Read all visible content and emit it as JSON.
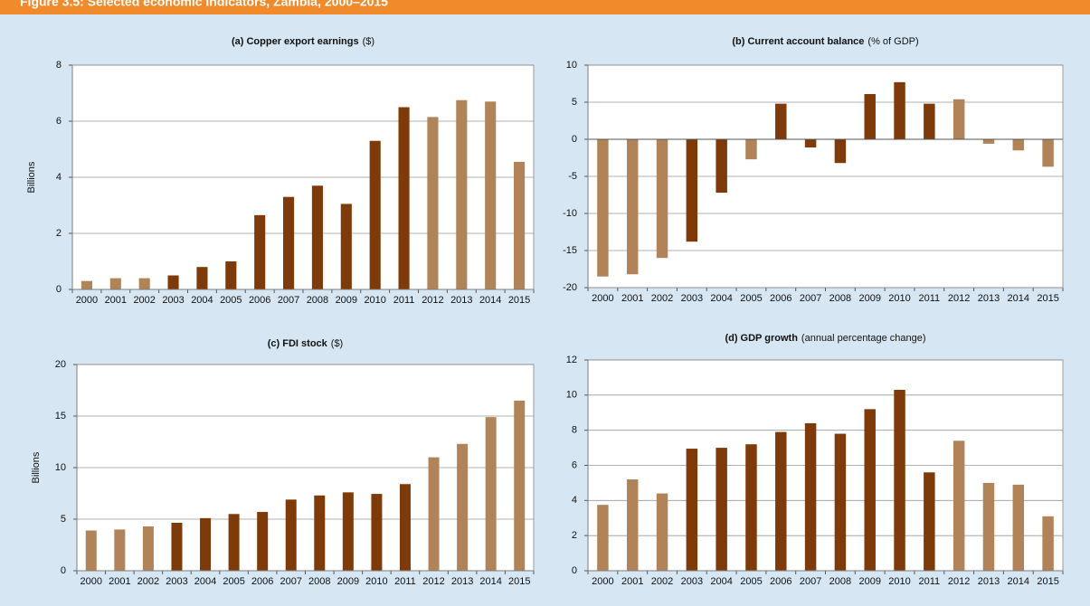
{
  "header": {
    "title": "Figure 3.5: Selected economic indicators, Zambia, 2000–2015"
  },
  "chart_data": [
    {
      "type": "bar",
      "title": "(a) Copper export earnings",
      "title_note": "($)",
      "ylabel": "Billions",
      "categories": [
        "2000",
        "2001",
        "2002",
        "2003",
        "2004",
        "2005",
        "2006",
        "2007",
        "2008",
        "2009",
        "2010",
        "2011",
        "2012",
        "2013",
        "2014",
        "2015"
      ],
      "values": [
        0.3,
        0.4,
        0.4,
        0.5,
        0.8,
        1.0,
        2.65,
        3.3,
        3.7,
        3.05,
        5.3,
        6.5,
        6.15,
        6.75,
        6.7,
        4.55
      ],
      "colors": [
        "#b08458",
        "#b08458",
        "#b08458",
        "#7f3a0a",
        "#7f3a0a",
        "#7f3a0a",
        "#7f3a0a",
        "#7f3a0a",
        "#7f3a0a",
        "#7f3a0a",
        "#7f3a0a",
        "#7f3a0a",
        "#b08458",
        "#b08458",
        "#b08458",
        "#b08458"
      ],
      "ylim": [
        0,
        8
      ],
      "yticks": [
        0,
        2,
        4,
        6,
        8
      ],
      "grid": true
    },
    {
      "type": "bar",
      "title": "(b) Current account  balance",
      "title_note": "(% of GDP)",
      "categories": [
        "2000",
        "2001",
        "2002",
        "2003",
        "2004",
        "2005",
        "2006",
        "2007",
        "2008",
        "2009",
        "2010",
        "2011",
        "2012",
        "2013",
        "2014",
        "2015"
      ],
      "values": [
        -18.5,
        -18.2,
        -16,
        -13.8,
        -7.2,
        -2.7,
        4.8,
        -1.1,
        -3.2,
        6.1,
        7.7,
        4.8,
        5.4,
        -0.6,
        -1.5,
        -3.7
      ],
      "colors": [
        "#b08458",
        "#b08458",
        "#b08458",
        "#7f3a0a",
        "#7f3a0a",
        "#b08458",
        "#7f3a0a",
        "#7f3a0a",
        "#7f3a0a",
        "#7f3a0a",
        "#7f3a0a",
        "#7f3a0a",
        "#b08458",
        "#b08458",
        "#b08458",
        "#b08458"
      ],
      "ylim": [
        -20,
        10
      ],
      "yticks": [
        -20,
        -15,
        -10,
        -5,
        0,
        5,
        10
      ],
      "grid": true
    },
    {
      "type": "bar",
      "title": "(c) FDI stock",
      "title_note": "($)",
      "ylabel": "Billions",
      "categories": [
        "2000",
        "2001",
        "2002",
        "2003",
        "2004",
        "2005",
        "2006",
        "2007",
        "2008",
        "2009",
        "2010",
        "2011",
        "2012",
        "2013",
        "2014",
        "2015"
      ],
      "values": [
        3.9,
        4.0,
        4.3,
        4.65,
        5.1,
        5.5,
        5.7,
        6.9,
        7.3,
        7.6,
        7.45,
        8.4,
        11.0,
        12.3,
        14.9,
        16.5
      ],
      "colors": [
        "#b08458",
        "#b08458",
        "#b08458",
        "#7f3a0a",
        "#7f3a0a",
        "#7f3a0a",
        "#7f3a0a",
        "#7f3a0a",
        "#7f3a0a",
        "#7f3a0a",
        "#7f3a0a",
        "#7f3a0a",
        "#b08458",
        "#b08458",
        "#b08458",
        "#b08458"
      ],
      "ylim": [
        0,
        20
      ],
      "yticks": [
        0,
        5,
        10,
        15,
        20
      ],
      "grid": true
    },
    {
      "type": "bar",
      "title": "(d) GDP growth",
      "title_note": "(annual percentage change)",
      "categories": [
        "2000",
        "2001",
        "2002",
        "2003",
        "2004",
        "2005",
        "2006",
        "2007",
        "2008",
        "2009",
        "2010",
        "2011",
        "2012",
        "2013",
        "2014",
        "2015"
      ],
      "values": [
        3.75,
        5.2,
        4.4,
        6.95,
        7.0,
        7.2,
        7.9,
        8.4,
        7.8,
        9.2,
        10.3,
        5.6,
        7.4,
        5.0,
        4.9,
        3.1
      ],
      "colors": [
        "#b08458",
        "#b08458",
        "#b08458",
        "#7f3a0a",
        "#7f3a0a",
        "#7f3a0a",
        "#7f3a0a",
        "#7f3a0a",
        "#7f3a0a",
        "#7f3a0a",
        "#7f3a0a",
        "#7f3a0a",
        "#b08458",
        "#b08458",
        "#b08458",
        "#b08458"
      ],
      "ylim": [
        0,
        12
      ],
      "yticks": [
        0,
        2,
        4,
        6,
        8,
        10,
        12
      ],
      "grid": true
    }
  ]
}
